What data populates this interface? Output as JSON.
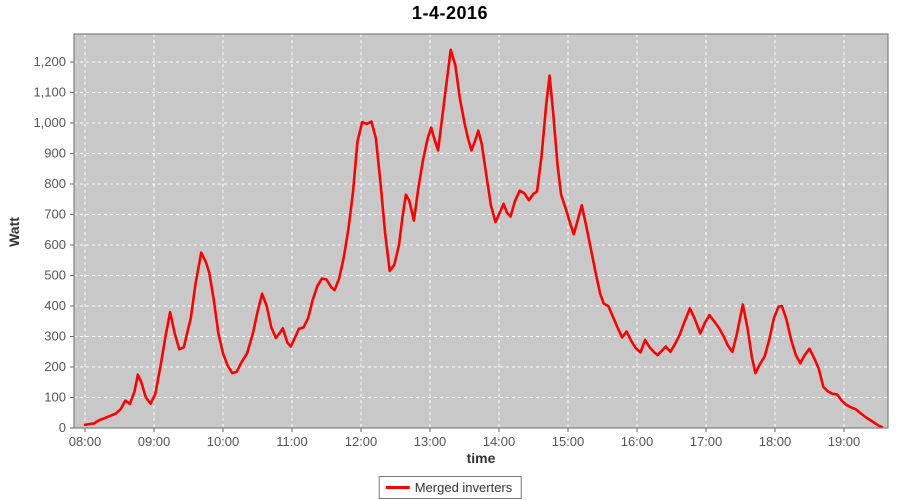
{
  "title": "1-4-2016",
  "legend": {
    "label": "Merged inverters"
  },
  "colors": {
    "series_line": "#FF0000",
    "plot_background": "#C8C8C8",
    "gridline": "#FFFFFF",
    "plot_border": "#7F7F7F",
    "tick_text": "#555555",
    "tick_mark": "#666666",
    "title_text": "#000000"
  },
  "chart_data": {
    "type": "line",
    "title": "1-4-2016",
    "xlabel": "time",
    "ylabel": "Watt",
    "grid": true,
    "legend_position": "bottom-center",
    "x_ticks": [
      "08:00",
      "09:00",
      "10:00",
      "11:00",
      "12:00",
      "13:00",
      "14:00",
      "15:00",
      "16:00",
      "17:00",
      "18:00",
      "19:00"
    ],
    "x_tick_hours": [
      8,
      9,
      10,
      11,
      12,
      13,
      14,
      15,
      16,
      17,
      18,
      19
    ],
    "xlim_hours": [
      7.84,
      19.64
    ],
    "y_ticks": [
      0,
      100,
      200,
      300,
      400,
      500,
      600,
      700,
      800,
      900,
      1000,
      1100,
      1200
    ],
    "y_tick_labels": [
      "0",
      "100",
      "200",
      "300",
      "400",
      "500",
      "600",
      "700",
      "800",
      "900",
      "1,000",
      "1,100",
      "1,200"
    ],
    "ylim": [
      0,
      1292
    ],
    "series": [
      {
        "name": "Merged inverters",
        "color": "#FF0000",
        "points": [
          [
            "08:00",
            10
          ],
          [
            "08:04",
            13
          ],
          [
            "08:08",
            15
          ],
          [
            "08:12",
            25
          ],
          [
            "08:17",
            32
          ],
          [
            "08:22",
            40
          ],
          [
            "08:27",
            48
          ],
          [
            "08:31",
            62
          ],
          [
            "08:35",
            90
          ],
          [
            "08:39",
            79
          ],
          [
            "08:43",
            120
          ],
          [
            "08:46",
            175
          ],
          [
            "08:49",
            150
          ],
          [
            "08:53",
            100
          ],
          [
            "08:57",
            80
          ],
          [
            "09:01",
            110
          ],
          [
            "09:06",
            210
          ],
          [
            "09:10",
            300
          ],
          [
            "09:14",
            380
          ],
          [
            "09:18",
            310
          ],
          [
            "09:22",
            258
          ],
          [
            "09:26",
            265
          ],
          [
            "09:28",
            298
          ],
          [
            "09:32",
            360
          ],
          [
            "09:36",
            470
          ],
          [
            "09:41",
            575
          ],
          [
            "09:45",
            545
          ],
          [
            "09:48",
            510
          ],
          [
            "09:52",
            420
          ],
          [
            "09:56",
            310
          ],
          [
            "10:00",
            245
          ],
          [
            "10:04",
            205
          ],
          [
            "10:08",
            180
          ],
          [
            "10:12",
            185
          ],
          [
            "10:16",
            215
          ],
          [
            "10:21",
            245
          ],
          [
            "10:26",
            310
          ],
          [
            "10:30",
            380
          ],
          [
            "10:34",
            440
          ],
          [
            "10:38",
            400
          ],
          [
            "10:42",
            330
          ],
          [
            "10:46",
            295
          ],
          [
            "10:50",
            315
          ],
          [
            "10:52",
            327
          ],
          [
            "10:56",
            280
          ],
          [
            "10:59",
            267
          ],
          [
            "11:03",
            300
          ],
          [
            "11:06",
            325
          ],
          [
            "11:10",
            330
          ],
          [
            "11:14",
            360
          ],
          [
            "11:18",
            420
          ],
          [
            "11:22",
            465
          ],
          [
            "11:26",
            490
          ],
          [
            "11:30",
            487
          ],
          [
            "11:34",
            462
          ],
          [
            "11:37",
            452
          ],
          [
            "11:41",
            490
          ],
          [
            "11:45",
            560
          ],
          [
            "11:49",
            650
          ],
          [
            "11:53",
            770
          ],
          [
            "11:57",
            940
          ],
          [
            "12:01",
            1003
          ],
          [
            "12:05",
            997
          ],
          [
            "12:09",
            1005
          ],
          [
            "12:13",
            950
          ],
          [
            "12:17",
            800
          ],
          [
            "12:21",
            640
          ],
          [
            "12:25",
            515
          ],
          [
            "12:29",
            535
          ],
          [
            "12:33",
            600
          ],
          [
            "12:36",
            690
          ],
          [
            "12:39",
            765
          ],
          [
            "12:42",
            745
          ],
          [
            "12:46",
            680
          ],
          [
            "12:50",
            790
          ],
          [
            "12:54",
            880
          ],
          [
            "12:58",
            950
          ],
          [
            "13:01",
            985
          ],
          [
            "13:04",
            945
          ],
          [
            "13:07",
            910
          ],
          [
            "13:10",
            1000
          ],
          [
            "13:14",
            1120
          ],
          [
            "13:18",
            1240
          ],
          [
            "13:22",
            1190
          ],
          [
            "13:26",
            1080
          ],
          [
            "13:30",
            1000
          ],
          [
            "13:33",
            950
          ],
          [
            "13:36",
            910
          ],
          [
            "13:39",
            940
          ],
          [
            "13:42",
            975
          ],
          [
            "13:45",
            930
          ],
          [
            "13:49",
            830
          ],
          [
            "13:53",
            730
          ],
          [
            "13:57",
            675
          ],
          [
            "14:01",
            710
          ],
          [
            "14:04",
            735
          ],
          [
            "14:07",
            705
          ],
          [
            "14:10",
            693
          ],
          [
            "14:14",
            745
          ],
          [
            "14:18",
            778
          ],
          [
            "14:22",
            770
          ],
          [
            "14:26",
            747
          ],
          [
            "14:30",
            768
          ],
          [
            "14:33",
            775
          ],
          [
            "14:37",
            890
          ],
          [
            "14:41",
            1060
          ],
          [
            "14:44",
            1155
          ],
          [
            "14:47",
            1040
          ],
          [
            "14:51",
            860
          ],
          [
            "14:54",
            765
          ],
          [
            "14:58",
            720
          ],
          [
            "15:02",
            670
          ],
          [
            "15:05",
            635
          ],
          [
            "15:09",
            690
          ],
          [
            "15:12",
            730
          ],
          [
            "15:16",
            660
          ],
          [
            "15:20",
            585
          ],
          [
            "15:24",
            510
          ],
          [
            "15:28",
            440
          ],
          [
            "15:31",
            408
          ],
          [
            "15:35",
            400
          ],
          [
            "15:39",
            365
          ],
          [
            "15:43",
            330
          ],
          [
            "15:47",
            297
          ],
          [
            "15:51",
            316
          ],
          [
            "15:55",
            285
          ],
          [
            "15:59",
            262
          ],
          [
            "16:03",
            248
          ],
          [
            "16:07",
            289
          ],
          [
            "16:11",
            265
          ],
          [
            "16:15",
            248
          ],
          [
            "16:18",
            239
          ],
          [
            "16:22",
            255
          ],
          [
            "16:25",
            267
          ],
          [
            "16:29",
            250
          ],
          [
            "16:33",
            275
          ],
          [
            "16:37",
            305
          ],
          [
            "16:41",
            345
          ],
          [
            "16:46",
            392
          ],
          [
            "16:50",
            360
          ],
          [
            "16:55",
            310
          ],
          [
            "16:59",
            345
          ],
          [
            "17:03",
            370
          ],
          [
            "17:07",
            350
          ],
          [
            "17:11",
            330
          ],
          [
            "17:15",
            303
          ],
          [
            "17:19",
            270
          ],
          [
            "17:23",
            250
          ],
          [
            "17:27",
            310
          ],
          [
            "17:32",
            405
          ],
          [
            "17:36",
            330
          ],
          [
            "17:40",
            230
          ],
          [
            "17:43",
            180
          ],
          [
            "17:47",
            210
          ],
          [
            "17:51",
            235
          ],
          [
            "17:55",
            290
          ],
          [
            "17:59",
            360
          ],
          [
            "18:03",
            398
          ],
          [
            "18:06",
            400
          ],
          [
            "18:10",
            355
          ],
          [
            "18:14",
            290
          ],
          [
            "18:18",
            240
          ],
          [
            "18:22",
            212
          ],
          [
            "18:26",
            240
          ],
          [
            "18:30",
            260
          ],
          [
            "18:34",
            230
          ],
          [
            "18:38",
            195
          ],
          [
            "18:42",
            135
          ],
          [
            "18:46",
            120
          ],
          [
            "18:50",
            112
          ],
          [
            "18:54",
            110
          ],
          [
            "18:58",
            90
          ],
          [
            "19:02",
            76
          ],
          [
            "19:06",
            68
          ],
          [
            "19:10",
            62
          ],
          [
            "19:14",
            50
          ],
          [
            "19:18",
            38
          ],
          [
            "19:22",
            28
          ],
          [
            "19:26",
            18
          ],
          [
            "19:30",
            8
          ],
          [
            "19:33",
            3
          ]
        ]
      }
    ]
  }
}
